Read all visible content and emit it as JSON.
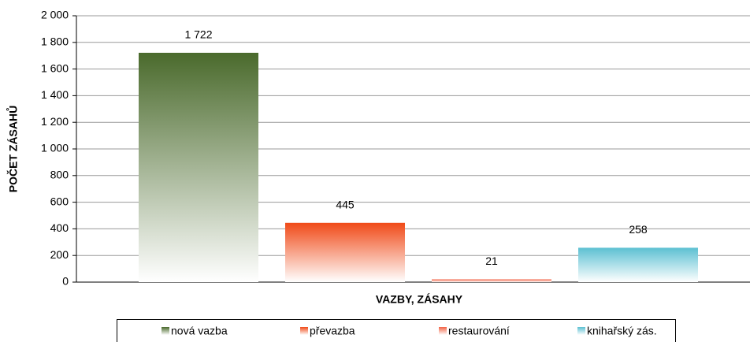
{
  "chart_data": {
    "type": "bar",
    "y_label": "POČET ZÁSAHŮ",
    "x_label": "VAZBY, ZÁSAHY",
    "series": [
      {
        "name": "nová vazba",
        "color": "#4a6a2c",
        "values": [
          1722
        ],
        "value_labels": [
          "1 722"
        ]
      },
      {
        "name": "převazba",
        "color": "#f04a18",
        "values": [
          445
        ]
      },
      {
        "name": "restaurování",
        "color": "#f26446",
        "values": [
          21
        ]
      },
      {
        "name": "knihařský zás.",
        "color": "#5cc0d2",
        "values": [
          258
        ]
      }
    ],
    "ylim": [
      0,
      2000
    ],
    "yticks": [
      0,
      200,
      400,
      600,
      800,
      {
        "value": 1000,
        "label": "1 000"
      },
      {
        "value": 1200,
        "label": "1 200"
      },
      {
        "value": 1400,
        "label": "1 400"
      },
      {
        "value": 1600,
        "label": "1 600"
      },
      {
        "value": 1800,
        "label": "1 800"
      },
      {
        "value": 2000,
        "label": "2 000"
      }
    ],
    "grid": true,
    "legend": "bottom"
  }
}
